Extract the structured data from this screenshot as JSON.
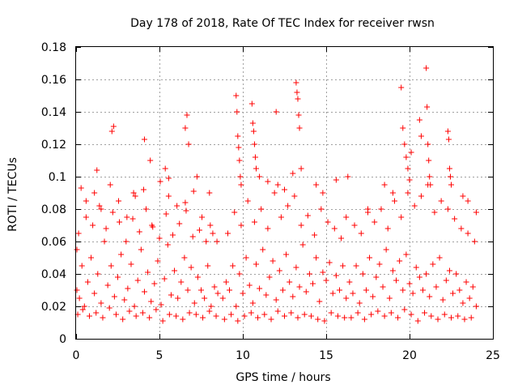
{
  "chart_data": {
    "type": "scatter",
    "title": "Day 178 of 2018, Rate Of TEC Index for receiver rwsn",
    "xlabel": "GPS time / hours",
    "ylabel": "ROTI / TECUs",
    "xlim": [
      0,
      25
    ],
    "ylim": [
      0,
      0.18
    ],
    "xticks": [
      0,
      5,
      10,
      15,
      20,
      25
    ],
    "xtick_labels": [
      "0",
      "5",
      "10",
      "15",
      "20",
      "25"
    ],
    "yticks": [
      0,
      0.02,
      0.04,
      0.06,
      0.08,
      0.1,
      0.12,
      0.14,
      0.16,
      0.18
    ],
    "ytick_labels": [
      "0",
      "0.02",
      "0.04",
      "0.06",
      "0.08",
      "0.1",
      "0.12",
      "0.14",
      "0.16",
      "0.18"
    ],
    "grid": true,
    "marker": "plus",
    "color": "#ff0000",
    "series": [
      {
        "name": "ROTI",
        "x": [
          0.05,
          0.2,
          0.35,
          0.5,
          0.7,
          0.9,
          1.1,
          1.3,
          1.5,
          1.7,
          1.9,
          2.1,
          2.3,
          2.5,
          2.7,
          2.9,
          3.1,
          3.3,
          3.5,
          3.7,
          3.9,
          4.1,
          4.3,
          4.5,
          4.7,
          4.9,
          5.1,
          5.3,
          5.5,
          5.7,
          5.9,
          6.1,
          6.3,
          6.5,
          6.7,
          6.9,
          7.1,
          7.3,
          7.5,
          7.7,
          7.9,
          8.1,
          8.3,
          8.5,
          0.1,
          0.4,
          0.8,
          1.2,
          1.6,
          2.0,
          2.4,
          2.8,
          3.2,
          3.6,
          4.0,
          4.4,
          4.8,
          5.2,
          5.6,
          6.0,
          6.4,
          6.8,
          7.2,
          7.6,
          8.0,
          8.4,
          0.15,
          0.6,
          1.0,
          1.4,
          1.8,
          2.2,
          2.6,
          3.0,
          3.4,
          3.8,
          4.2,
          4.6,
          5.0,
          5.4,
          5.8,
          6.2,
          6.6,
          7.0,
          7.4,
          7.8,
          8.2,
          0.3,
          1.25,
          2.15,
          2.25,
          3.45,
          4.1,
          4.45,
          5.35,
          5.55,
          6.55,
          6.65,
          6.75,
          7.25,
          8.0,
          0.05,
          0.6,
          1.1,
          1.5,
          2.05,
          2.55,
          3.05,
          3.55,
          4.05,
          4.55,
          5.05,
          5.55,
          6.05,
          6.55,
          7.05,
          7.55,
          8.05,
          8.45,
          8.8,
          9.0,
          9.2,
          9.4,
          9.6,
          9.8,
          10.0,
          10.2,
          10.4,
          10.6,
          10.8,
          11.0,
          11.2,
          11.4,
          11.6,
          11.8,
          12.0,
          12.2,
          12.4,
          12.6,
          12.8,
          13.0,
          13.2,
          13.4,
          13.6,
          13.8,
          14.0,
          14.2,
          14.4,
          14.6,
          14.8,
          15.0,
          15.2,
          15.4,
          15.6,
          15.8,
          16.0,
          16.2,
          8.9,
          9.3,
          9.7,
          10.1,
          10.5,
          10.9,
          11.3,
          11.7,
          12.1,
          12.5,
          12.9,
          13.3,
          13.7,
          14.1,
          14.5,
          14.9,
          15.3,
          15.7,
          16.1,
          9.1,
          9.5,
          9.9,
          10.3,
          10.7,
          11.1,
          11.5,
          11.9,
          12.3,
          12.7,
          13.1,
          13.5,
          13.9,
          14.3,
          14.7,
          15.1,
          15.5,
          15.9,
          9.6,
          9.65,
          9.7,
          9.75,
          9.8,
          9.85,
          9.9,
          10.55,
          10.6,
          10.65,
          10.7,
          10.75,
          10.8,
          11.0,
          11.5,
          12.0,
          12.1,
          12.5,
          13.0,
          13.2,
          13.25,
          13.3,
          13.35,
          13.4,
          13.5,
          14.4,
          14.8,
          15.6,
          16.3,
          16.4,
          16.6,
          16.8,
          17.0,
          17.2,
          17.4,
          17.6,
          17.8,
          18.0,
          18.2,
          18.4,
          18.6,
          18.8,
          19.0,
          19.2,
          19.4,
          19.6,
          19.8,
          20.0,
          20.2,
          20.4,
          20.6,
          20.8,
          21.0,
          21.2,
          21.4,
          21.6,
          21.8,
          22.0,
          22.2,
          22.4,
          22.6,
          22.8,
          23.0,
          23.2,
          23.4,
          23.6,
          23.8,
          24.0,
          16.5,
          16.9,
          17.3,
          17.7,
          18.1,
          18.5,
          18.9,
          19.3,
          19.7,
          20.1,
          20.5,
          20.9,
          21.3,
          21.7,
          22.1,
          22.5,
          22.9,
          23.3,
          23.7,
          16.7,
          17.1,
          17.5,
          17.9,
          18.3,
          18.7,
          19.1,
          19.5,
          19.9,
          20.3,
          20.7,
          21.1,
          21.5,
          21.9,
          22.3,
          22.7,
          23.1,
          23.5,
          23.9,
          19.5,
          19.6,
          19.7,
          19.8,
          19.9,
          20.0,
          20.1,
          20.6,
          20.7,
          21.0,
          21.05,
          21.1,
          21.15,
          21.2,
          21.25,
          22.3,
          22.35,
          22.4,
          22.45,
          22.5,
          23.2,
          23.5,
          24.0,
          18.5,
          19.0,
          17.5,
          16.2
        ],
        "y": [
          0.03,
          0.025,
          0.045,
          0.02,
          0.035,
          0.05,
          0.028,
          0.04,
          0.022,
          0.06,
          0.033,
          0.045,
          0.026,
          0.038,
          0.052,
          0.024,
          0.031,
          0.046,
          0.02,
          0.036,
          0.055,
          0.029,
          0.041,
          0.023,
          0.034,
          0.048,
          0.021,
          0.037,
          0.058,
          0.027,
          0.042,
          0.025,
          0.035,
          0.05,
          0.03,
          0.044,
          0.022,
          0.038,
          0.03,
          0.025,
          0.045,
          0.02,
          0.032,
          0.028,
          0.015,
          0.018,
          0.014,
          0.016,
          0.013,
          0.019,
          0.015,
          0.012,
          0.017,
          0.014,
          0.016,
          0.013,
          0.018,
          0.011,
          0.015,
          0.014,
          0.012,
          0.016,
          0.015,
          0.013,
          0.017,
          0.014,
          0.065,
          0.075,
          0.07,
          0.082,
          0.068,
          0.078,
          0.072,
          0.06,
          0.074,
          0.066,
          0.08,
          0.069,
          0.062,
          0.077,
          0.064,
          0.071,
          0.079,
          0.063,
          0.067,
          0.06,
          0.065,
          0.093,
          0.104,
          0.128,
          0.131,
          0.09,
          0.123,
          0.11,
          0.105,
          0.099,
          0.13,
          0.138,
          0.12,
          0.1,
          0.09,
          0.055,
          0.085,
          0.09,
          0.08,
          0.095,
          0.085,
          0.075,
          0.088,
          0.092,
          0.07,
          0.097,
          0.088,
          0.082,
          0.084,
          0.091,
          0.075,
          0.07,
          0.06,
          0.025,
          0.035,
          0.03,
          0.045,
          0.02,
          0.04,
          0.028,
          0.05,
          0.033,
          0.022,
          0.046,
          0.031,
          0.055,
          0.027,
          0.038,
          0.048,
          0.024,
          0.042,
          0.03,
          0.052,
          0.035,
          0.026,
          0.044,
          0.032,
          0.058,
          0.029,
          0.04,
          0.034,
          0.05,
          0.023,
          0.041,
          0.036,
          0.047,
          0.028,
          0.039,
          0.03,
          0.045,
          0.025,
          0.012,
          0.015,
          0.011,
          0.014,
          0.016,
          0.013,
          0.015,
          0.012,
          0.017,
          0.014,
          0.016,
          0.013,
          0.015,
          0.014,
          0.012,
          0.011,
          0.016,
          0.014,
          0.013,
          0.065,
          0.078,
          0.07,
          0.085,
          0.072,
          0.08,
          0.068,
          0.09,
          0.075,
          0.082,
          0.088,
          0.07,
          0.076,
          0.064,
          0.08,
          0.072,
          0.068,
          0.062,
          0.15,
          0.14,
          0.125,
          0.118,
          0.11,
          0.1,
          0.095,
          0.145,
          0.133,
          0.128,
          0.12,
          0.112,
          0.105,
          0.1,
          0.097,
          0.14,
          0.095,
          0.092,
          0.102,
          0.158,
          0.152,
          0.148,
          0.138,
          0.13,
          0.105,
          0.095,
          0.09,
          0.098,
          0.1,
          0.035,
          0.028,
          0.045,
          0.022,
          0.04,
          0.03,
          0.05,
          0.026,
          0.038,
          0.046,
          0.032,
          0.055,
          0.025,
          0.042,
          0.036,
          0.048,
          0.03,
          0.052,
          0.034,
          0.028,
          0.044,
          0.038,
          0.03,
          0.04,
          0.026,
          0.046,
          0.032,
          0.05,
          0.024,
          0.036,
          0.042,
          0.028,
          0.04,
          0.03,
          0.022,
          0.035,
          0.025,
          0.032,
          0.02,
          0.013,
          0.016,
          0.012,
          0.015,
          0.017,
          0.014,
          0.016,
          0.013,
          0.018,
          0.015,
          0.011,
          0.016,
          0.014,
          0.012,
          0.015,
          0.013,
          0.014,
          0.012,
          0.013,
          0.07,
          0.065,
          0.078,
          0.072,
          0.08,
          0.068,
          0.085,
          0.075,
          0.09,
          0.082,
          0.088,
          0.095,
          0.078,
          0.085,
          0.08,
          0.074,
          0.068,
          0.065,
          0.06,
          0.155,
          0.13,
          0.12,
          0.112,
          0.105,
          0.098,
          0.115,
          0.135,
          0.125,
          0.167,
          0.143,
          0.12,
          0.11,
          0.1,
          0.095,
          0.128,
          0.123,
          0.105,
          0.1,
          0.095,
          0.088,
          0.085,
          0.078,
          0.095,
          0.09,
          0.08,
          0.075
        ]
      }
    ]
  }
}
